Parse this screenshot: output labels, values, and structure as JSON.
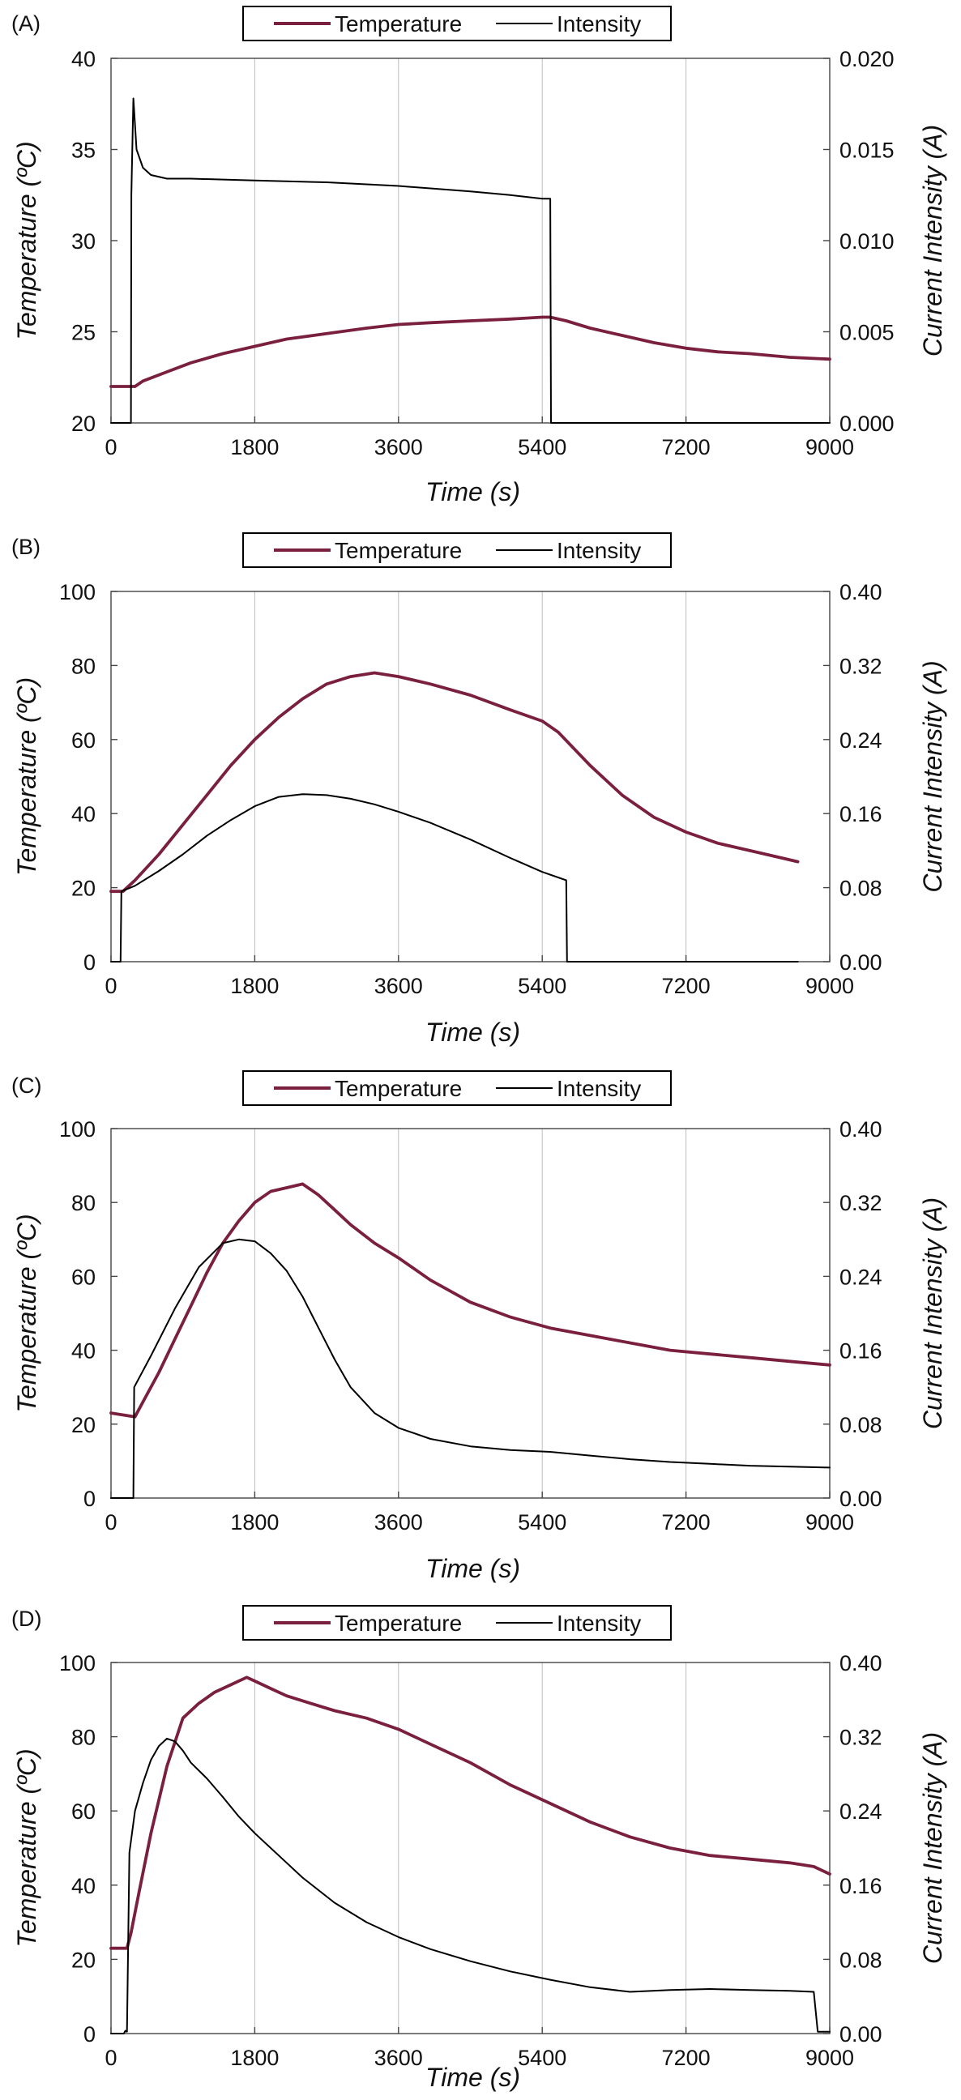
{
  "colors": {
    "temperature": "#7a1f3d",
    "intensity": "#000000"
  },
  "legend": {
    "temperature": "Temperature",
    "intensity": "Intensity"
  },
  "chart_data": [
    {
      "panel": "(A)",
      "type": "line",
      "xlabel": "Time (s)",
      "ylabel": "Temperature (ºC)",
      "y2label": "Current Intensity (A)",
      "xlim": [
        0,
        9000
      ],
      "xticks": [
        0,
        1800,
        3600,
        5400,
        7200,
        9000
      ],
      "ylim": [
        20,
        40
      ],
      "yticks": [
        20,
        25,
        30,
        35,
        40
      ],
      "y2lim": [
        0,
        0.02
      ],
      "y2ticks": [
        "0.000",
        "0.005",
        "0.010",
        "0.015",
        "0.020"
      ],
      "grid": "vertical",
      "legend_position": "top-center",
      "series": [
        {
          "name": "Temperature",
          "axis": "left",
          "x": [
            0,
            300,
            400,
            700,
            1000,
            1400,
            1800,
            2200,
            2700,
            3200,
            3600,
            4000,
            4500,
            5000,
            5400,
            5500,
            5700,
            6000,
            6400,
            6800,
            7200,
            7600,
            8000,
            8500,
            9000
          ],
          "y": [
            22.0,
            22.0,
            22.3,
            22.8,
            23.3,
            23.8,
            24.2,
            24.6,
            24.9,
            25.2,
            25.4,
            25.5,
            25.6,
            25.7,
            25.8,
            25.8,
            25.6,
            25.2,
            24.8,
            24.4,
            24.1,
            23.9,
            23.8,
            23.6,
            23.5
          ]
        },
        {
          "name": "Intensity",
          "axis": "right",
          "x": [
            0,
            250,
            255,
            280,
            320,
            400,
            500,
            700,
            1000,
            1800,
            2700,
            3600,
            4500,
            5000,
            5400,
            5500,
            5510,
            9000
          ],
          "y": [
            0,
            0,
            0.0125,
            0.0178,
            0.015,
            0.014,
            0.0136,
            0.0134,
            0.0134,
            0.0133,
            0.0132,
            0.013,
            0.0127,
            0.0125,
            0.0123,
            0.0123,
            0,
            0
          ]
        }
      ]
    },
    {
      "panel": "(B)",
      "type": "line",
      "xlabel": "Time (s)",
      "ylabel": "Temperature (ºC)",
      "y2label": "Current Intensity (A)",
      "xlim": [
        0,
        9000
      ],
      "xticks": [
        0,
        1800,
        3600,
        5400,
        7200,
        9000
      ],
      "ylim": [
        0,
        100
      ],
      "yticks": [
        0,
        20,
        40,
        60,
        80,
        100
      ],
      "y2lim": [
        0,
        0.4
      ],
      "y2ticks": [
        "0.00",
        "0.08",
        "0.16",
        "0.24",
        "0.32",
        "0.40"
      ],
      "grid": "vertical",
      "legend_position": "top-center",
      "series": [
        {
          "name": "Temperature",
          "axis": "left",
          "x": [
            0,
            150,
            300,
            600,
            900,
            1200,
            1500,
            1800,
            2100,
            2400,
            2700,
            3000,
            3300,
            3600,
            4000,
            4500,
            5000,
            5400,
            5600,
            6000,
            6400,
            6800,
            7200,
            7600,
            8000,
            8400,
            8600
          ],
          "y": [
            19,
            19,
            22,
            29,
            37,
            45,
            53,
            60,
            66,
            71,
            75,
            77,
            78,
            77,
            75,
            72,
            68,
            65,
            62,
            53,
            45,
            39,
            35,
            32,
            30,
            28,
            27
          ]
        },
        {
          "name": "Intensity",
          "axis": "right",
          "x": [
            0,
            120,
            130,
            300,
            600,
            900,
            1200,
            1500,
            1800,
            2100,
            2400,
            2700,
            3000,
            3300,
            3600,
            4000,
            4500,
            5000,
            5400,
            5700,
            5710,
            8600
          ],
          "y": [
            0,
            0,
            0.076,
            0.082,
            0.098,
            0.116,
            0.136,
            0.153,
            0.168,
            0.178,
            0.181,
            0.18,
            0.176,
            0.17,
            0.162,
            0.15,
            0.132,
            0.112,
            0.097,
            0.088,
            0,
            0
          ]
        }
      ]
    },
    {
      "panel": "(C)",
      "type": "line",
      "xlabel": "Time (s)",
      "ylabel": "Temperature (ºC)",
      "y2label": "Current Intensity (A)",
      "xlim": [
        0,
        9000
      ],
      "xticks": [
        0,
        1800,
        3600,
        5400,
        7200,
        9000
      ],
      "ylim": [
        0,
        100
      ],
      "yticks": [
        0,
        20,
        40,
        60,
        80,
        100
      ],
      "y2lim": [
        0,
        0.4
      ],
      "y2ticks": [
        "0.00",
        "0.08",
        "0.16",
        "0.24",
        "0.32",
        "0.40"
      ],
      "grid": "vertical",
      "legend_position": "top-center",
      "series": [
        {
          "name": "Temperature",
          "axis": "left",
          "x": [
            0,
            300,
            400,
            600,
            800,
            1000,
            1200,
            1400,
            1600,
            1800,
            2000,
            2200,
            2400,
            2600,
            2800,
            3000,
            3300,
            3600,
            4000,
            4500,
            5000,
            5500,
            6000,
            6500,
            7000,
            7500,
            8000,
            8500,
            9000
          ],
          "y": [
            23,
            22,
            26,
            34,
            43,
            52,
            61,
            69,
            75,
            80,
            83,
            84,
            85,
            82,
            78,
            74,
            69,
            65,
            59,
            53,
            49,
            46,
            44,
            42,
            40,
            39,
            38,
            37,
            36
          ]
        },
        {
          "name": "Intensity",
          "axis": "right",
          "x": [
            0,
            280,
            290,
            500,
            800,
            1100,
            1400,
            1600,
            1800,
            2000,
            2200,
            2400,
            2600,
            2800,
            3000,
            3300,
            3600,
            4000,
            4500,
            5000,
            5500,
            6000,
            6500,
            7000,
            7500,
            8000,
            8500,
            9000
          ],
          "y": [
            0,
            0,
            0.12,
            0.154,
            0.205,
            0.25,
            0.276,
            0.28,
            0.278,
            0.265,
            0.246,
            0.218,
            0.184,
            0.15,
            0.12,
            0.092,
            0.076,
            0.064,
            0.056,
            0.052,
            0.05,
            0.046,
            0.042,
            0.039,
            0.037,
            0.035,
            0.034,
            0.033
          ]
        }
      ]
    },
    {
      "panel": "(D)",
      "type": "line",
      "xlabel": "Time (s)",
      "ylabel": "Temperature (ºC)",
      "y2label": "Current Intensity (A)",
      "xlim": [
        0,
        9000
      ],
      "xticks": [
        0,
        1800,
        3600,
        5400,
        7200,
        9000
      ],
      "ylim": [
        0,
        100
      ],
      "yticks": [
        0,
        20,
        40,
        60,
        80,
        100
      ],
      "y2lim": [
        0,
        0.4
      ],
      "y2ticks": [
        "0.00",
        "0.08",
        "0.16",
        "0.24",
        "0.32",
        "0.40"
      ],
      "grid": "vertical",
      "legend_position": "top-center",
      "series": [
        {
          "name": "Temperature",
          "axis": "left",
          "x": [
            0,
            200,
            250,
            350,
            500,
            700,
            900,
            1100,
            1300,
            1500,
            1700,
            1800,
            2000,
            2200,
            2500,
            2800,
            3200,
            3600,
            4000,
            4500,
            5000,
            5500,
            6000,
            6500,
            7000,
            7500,
            8000,
            8500,
            8800,
            9000
          ],
          "y": [
            23,
            23,
            27,
            38,
            54,
            72,
            85,
            89,
            92,
            94,
            96,
            95,
            93,
            91,
            89,
            87,
            85,
            82,
            78,
            73,
            67,
            62,
            57,
            53,
            50,
            48,
            47,
            46,
            45,
            43
          ]
        },
        {
          "name": "Intensity",
          "axis": "right",
          "x": [
            0,
            160,
            180,
            200,
            230,
            300,
            400,
            500,
            600,
            700,
            800,
            900,
            1000,
            1200,
            1400,
            1600,
            1800,
            2100,
            2400,
            2800,
            3200,
            3600,
            4000,
            4500,
            5000,
            5500,
            6000,
            6500,
            7000,
            7500,
            8000,
            8500,
            8800,
            8850,
            9000
          ],
          "y": [
            0,
            0,
            0.003,
            0.002,
            0.195,
            0.24,
            0.27,
            0.295,
            0.31,
            0.318,
            0.315,
            0.305,
            0.292,
            0.275,
            0.255,
            0.234,
            0.216,
            0.192,
            0.168,
            0.141,
            0.12,
            0.104,
            0.091,
            0.078,
            0.067,
            0.058,
            0.05,
            0.045,
            0.047,
            0.048,
            0.047,
            0.046,
            0.045,
            0.002,
            0.002
          ]
        }
      ]
    }
  ]
}
